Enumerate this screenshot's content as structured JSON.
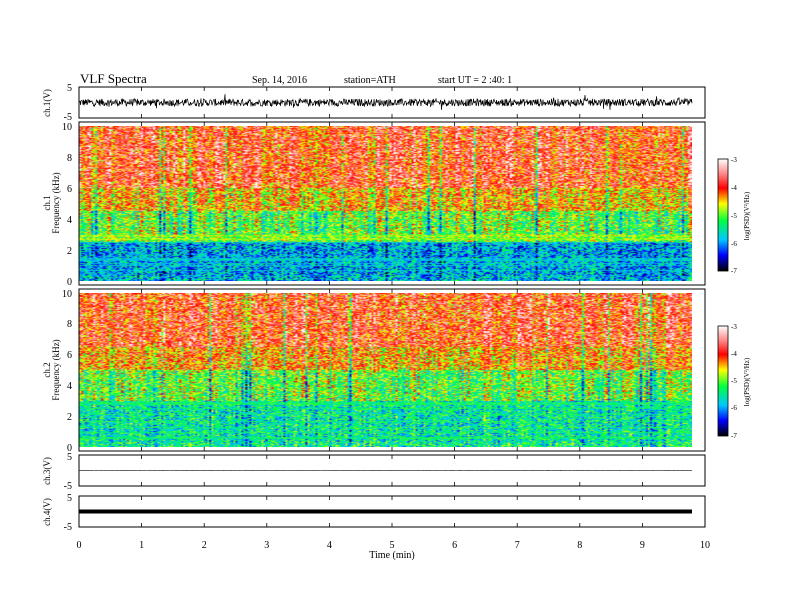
{
  "header": {
    "title": "VLF  Spectra",
    "date": "Sep. 14, 2016",
    "station": "station=ATH",
    "start": "start  UT  =   2  :40: 1"
  },
  "chart_data": {
    "type": "heatmap",
    "x_axis": {
      "label": "Time  (min)",
      "range": [
        0,
        10
      ],
      "ticks": [
        "0",
        "1",
        "2",
        "3",
        "4",
        "5",
        "6",
        "7",
        "8",
        "9",
        "10"
      ],
      "data_end": 9.8
    },
    "panels": [
      {
        "kind": "waveform",
        "ylabel": "ch.1(V)",
        "yticks": [
          "5",
          "-5"
        ],
        "ylim": [
          -5,
          5
        ],
        "baseline": 0,
        "noise_amplitude": 1.2,
        "color": "#000000"
      },
      {
        "kind": "spectrogram",
        "ylabel1": "ch.1",
        "ylabel2": "Frequency  (kHz)",
        "yticks": [
          "0",
          "2",
          "4",
          "6",
          "8",
          "10"
        ],
        "ylim": [
          0,
          10
        ],
        "colorbar": {
          "label": "log(PSD)(V²/Hz)",
          "ticks": [
            "-3",
            "-4",
            "-5",
            "-6",
            "-7"
          ],
          "range": [
            -7,
            -3
          ]
        },
        "bands": [
          {
            "freq_range": [
              0,
              0.3
            ],
            "log_psd": -5.8
          },
          {
            "freq_range": [
              0.3,
              2.5
            ],
            "log_psd": -5.9
          },
          {
            "freq_range": [
              2.5,
              4.5
            ],
            "log_psd": -5.0
          },
          {
            "freq_range": [
              4.5,
              6.0
            ],
            "log_psd": -4.4
          },
          {
            "freq_range": [
              6.0,
              10.0
            ],
            "log_psd": -3.9
          }
        ]
      },
      {
        "kind": "spectrogram",
        "ylabel1": "ch.2",
        "ylabel2": "Frequency  (kHz)",
        "yticks": [
          "0",
          "2",
          "4",
          "6",
          "8",
          "10"
        ],
        "ylim": [
          0,
          10
        ],
        "colorbar": {
          "label": "log(PSD)(V²/Hz)",
          "ticks": [
            "-3",
            "-4",
            "-5",
            "-6",
            "-7"
          ],
          "range": [
            -7,
            -3
          ]
        },
        "bands": [
          {
            "freq_range": [
              0,
              0.3
            ],
            "log_psd": -5.4
          },
          {
            "freq_range": [
              0.3,
              3.0
            ],
            "log_psd": -5.5
          },
          {
            "freq_range": [
              3.0,
              5.0
            ],
            "log_psd": -5.0
          },
          {
            "freq_range": [
              5.0,
              6.5
            ],
            "log_psd": -4.3
          },
          {
            "freq_range": [
              6.5,
              10.0
            ],
            "log_psd": -3.9
          }
        ]
      },
      {
        "kind": "waveform",
        "ylabel": "ch.3(V)",
        "yticks": [
          "5",
          "-5"
        ],
        "ylim": [
          -5,
          5
        ],
        "baseline": 0,
        "noise_amplitude": 0.05,
        "color": "#000000"
      },
      {
        "kind": "waveform",
        "ylabel": "ch.4(V)",
        "yticks": [
          "5",
          "-5"
        ],
        "ylim": [
          -5,
          5
        ],
        "baseline": 0,
        "noise_amplitude": 0.0,
        "color": "#000000"
      }
    ]
  }
}
